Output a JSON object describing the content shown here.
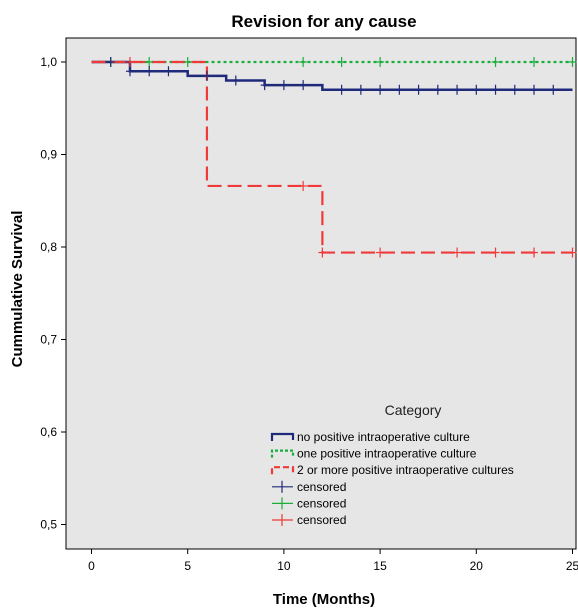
{
  "chart_data": {
    "type": "line",
    "subtype": "kaplan-meier survival step plot",
    "title": "Revision for any cause",
    "xlabel": "Time (Months)",
    "ylabel": "Cummulative Survival",
    "xlim": [
      -2,
      25
    ],
    "ylim": [
      0.48,
      1.025
    ],
    "x_ticks": [
      0,
      5,
      10,
      15,
      20,
      25
    ],
    "x_tick_labels": [
      "0",
      "5",
      "10",
      "15",
      "20",
      "25"
    ],
    "y_ticks": [
      0.5,
      0.6,
      0.7,
      0.8,
      0.9,
      1.0
    ],
    "y_tick_labels": [
      "0,5",
      "0,6",
      "0,7",
      "0,8",
      "0,9",
      "1,0"
    ],
    "grid": false,
    "plot_background": "#e6e6e6",
    "legend": {
      "title": "Category",
      "placement": "bottom-right inside plot",
      "entries": [
        {
          "label": "no positive intraoperative culture",
          "kind": "line",
          "series": 0
        },
        {
          "label": "one positive intraoperative culture",
          "kind": "line",
          "series": 1
        },
        {
          "label": "2 or more positive intraoperative cultures",
          "kind": "line",
          "series": 2
        },
        {
          "label": "censored",
          "kind": "censor",
          "series": 0
        },
        {
          "label": "censored",
          "kind": "censor",
          "series": 1
        },
        {
          "label": "censored",
          "kind": "censor",
          "series": 2
        }
      ]
    },
    "series": [
      {
        "name": "no positive intraoperative culture",
        "color": "#1f2a7a",
        "line_style": "solid",
        "steps": [
          [
            0,
            1.0
          ],
          [
            2,
            0.99
          ],
          [
            5,
            0.985
          ],
          [
            7,
            0.98
          ],
          [
            9,
            0.975
          ],
          [
            12,
            0.97
          ],
          [
            25,
            0.97
          ]
        ],
        "censored": [
          1,
          2,
          3,
          4,
          6,
          7.5,
          9,
          10,
          11,
          13,
          14,
          15,
          16,
          17,
          18,
          19,
          20,
          21,
          22,
          23,
          24
        ]
      },
      {
        "name": "one positive intraoperative culture",
        "color": "#1aae3c",
        "line_style": "dotted",
        "steps": [
          [
            0,
            1.0
          ],
          [
            25,
            1.0
          ]
        ],
        "censored": [
          1,
          3,
          5,
          11,
          13,
          15,
          21,
          23,
          25
        ]
      },
      {
        "name": "2 or more positive intraoperative cultures",
        "color": "#f03a3a",
        "line_style": "dashed",
        "steps": [
          [
            0,
            1.0
          ],
          [
            6,
            0.866
          ],
          [
            12,
            0.794
          ],
          [
            25,
            0.794
          ]
        ],
        "censored": [
          2,
          11,
          12,
          15,
          19,
          21,
          23,
          25
        ]
      }
    ]
  }
}
